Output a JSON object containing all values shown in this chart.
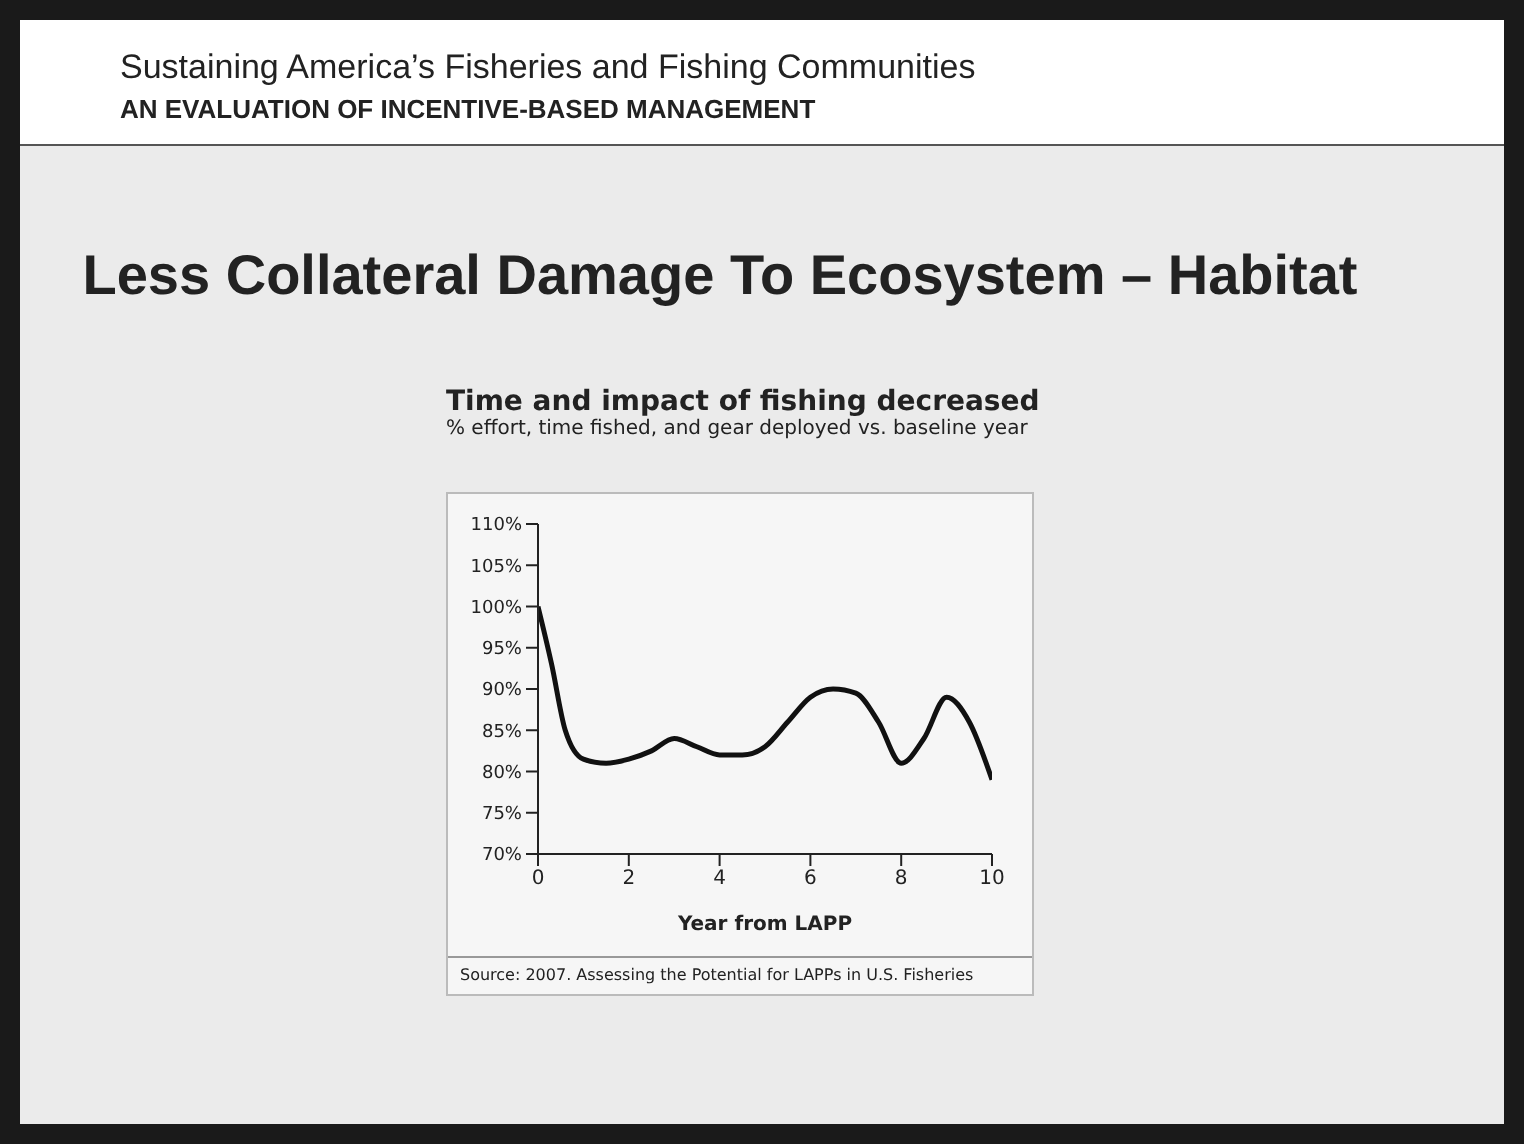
{
  "chart_data": {
    "type": "line",
    "title": "Time and impact of fishing decreased",
    "subtitle": "% effort, time fished, and gear deployed vs. baseline year",
    "xlabel": "Year from LAPP",
    "annotations": [
      "Sustaining America’s Fisheries and Fishing Communities",
      "AN EVALUATION OF INCENTIVE-BASED MANAGEMENT",
      "Less Collateral Damage To Ecosystem – Habitat",
      "Source: 2007. Assessing the Potential for LAPPs in U.S. Fisheries"
    ],
    "x": [
      0,
      0.3,
      0.6,
      1,
      1.5,
      2,
      2.5,
      3,
      3.5,
      4,
      4.5,
      5,
      5.5,
      6,
      6.5,
      7,
      7.5,
      8,
      8.5,
      9,
      9.5,
      10
    ],
    "series": [
      {
        "color": "#111111",
        "values": [
          100,
          93,
          85,
          81.5,
          81,
          81.5,
          82.5,
          84,
          83,
          82,
          82,
          83,
          86,
          89,
          90,
          89.5,
          86,
          81,
          84,
          89,
          86,
          79
        ]
      }
    ],
    "xlim": [
      0,
      10
    ],
    "xticks": [
      0,
      2,
      4,
      6,
      8,
      10
    ],
    "ylim": [
      70,
      110
    ],
    "yticks": [
      {
        "value": 70,
        "label": "70%"
      },
      {
        "value": 75,
        "label": "75%"
      },
      {
        "value": 80,
        "label": "80%"
      },
      {
        "value": 85,
        "label": "85%"
      },
      {
        "value": 90,
        "label": "90%"
      },
      {
        "value": 95,
        "label": "95%"
      },
      {
        "value": 100,
        "label": "100%"
      },
      {
        "value": 105,
        "label": "105%"
      },
      {
        "value": 110,
        "label": "110%"
      }
    ],
    "grid": false,
    "legend": false,
    "marker": "none",
    "line_style": "solid"
  }
}
